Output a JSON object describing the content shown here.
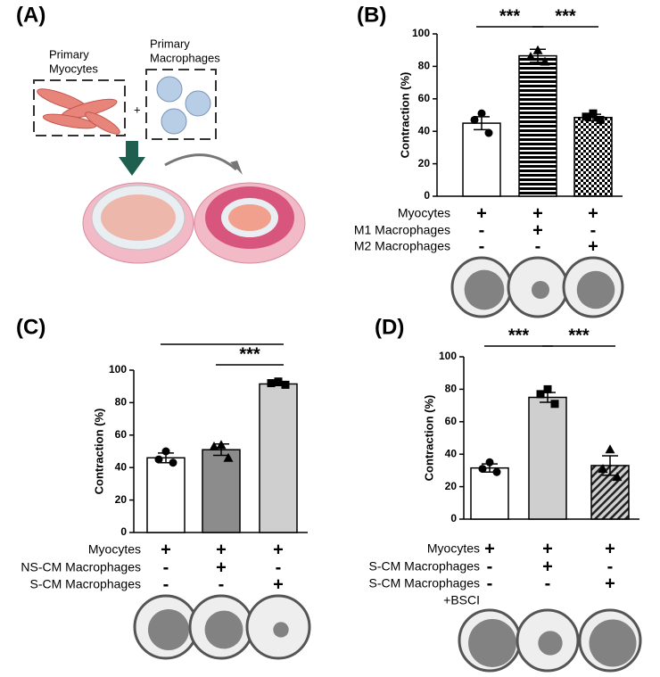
{
  "diagram": {
    "panel": "(A)",
    "myocytes": [
      "Primary",
      "Myocytes"
    ],
    "macrophages": [
      "Primary",
      "Macrophages"
    ],
    "plus": "+"
  },
  "chart_data": [
    {
      "type": "bar",
      "panel": "(B)",
      "ylabel": "Contraction (%)",
      "ylim": [
        0,
        100
      ],
      "yticks": [
        0,
        20,
        40,
        60,
        80,
        100
      ],
      "values": [
        45,
        86.5,
        48.5
      ],
      "errors": [
        4,
        4,
        2
      ],
      "points": [
        [
          51,
          47,
          39
        ],
        [
          90,
          86,
          83
        ],
        [
          51,
          49,
          47
        ]
      ],
      "markers": [
        "circle",
        "triangle",
        "square"
      ],
      "bar_fills": [
        "#ffffff",
        "horizontal-stripes",
        "checkerboard"
      ],
      "annotations": [
        {
          "text": "***",
          "between": [
            0,
            1
          ]
        },
        {
          "text": "***",
          "between": [
            1,
            2
          ]
        }
      ],
      "conditions": [
        {
          "label": [
            "Myocytes"
          ],
          "signs": [
            "+",
            "+",
            "+"
          ]
        },
        {
          "label": [
            "M1 Macrophages"
          ],
          "signs": [
            "-",
            "+",
            "-"
          ]
        },
        {
          "label": [
            "M2 Macrophages"
          ],
          "signs": [
            "-",
            "-",
            "+"
          ]
        }
      ]
    },
    {
      "type": "bar",
      "panel": "(C)",
      "ylabel": "Contraction (%)",
      "ylim": [
        0,
        100
      ],
      "yticks": [
        0,
        20,
        40,
        60,
        80,
        100
      ],
      "values": [
        46,
        51,
        91.5
      ],
      "errors": [
        3,
        3.5,
        1
      ],
      "points": [
        [
          50,
          45,
          43
        ],
        [
          54,
          53,
          46
        ],
        [
          93,
          92,
          91
        ]
      ],
      "markers": [
        "circle",
        "triangle",
        "square"
      ],
      "bar_fills": [
        "#ffffff",
        "#8c8c8c",
        "#cfcfcf"
      ],
      "annotations": [
        {
          "between": [
            0,
            2
          ]
        },
        {
          "text": "***",
          "between": [
            1,
            2
          ]
        }
      ],
      "conditions": [
        {
          "label": [
            "Myocytes"
          ],
          "signs": [
            "+",
            "+",
            "+"
          ]
        },
        {
          "label": [
            "NS-CM Macrophages"
          ],
          "signs": [
            "-",
            "+",
            "-"
          ]
        },
        {
          "label": [
            "S-CM Macrophages"
          ],
          "signs": [
            "-",
            "-",
            "+"
          ]
        }
      ]
    },
    {
      "type": "bar",
      "panel": "(D)",
      "ylabel": "Contraction (%)",
      "ylim": [
        0,
        100
      ],
      "yticks": [
        0,
        20,
        40,
        60,
        80,
        100
      ],
      "values": [
        31.5,
        75,
        33
      ],
      "errors": [
        2.5,
        3,
        6
      ],
      "points": [
        [
          35,
          31,
          29
        ],
        [
          80,
          77,
          71
        ],
        [
          43,
          31,
          26
        ]
      ],
      "markers": [
        "circle",
        "square",
        "triangle"
      ],
      "bar_fills": [
        "#ffffff",
        "#cfcfcf",
        "diagonal-hatch"
      ],
      "annotations": [
        {
          "text": "***",
          "between": [
            0,
            1
          ]
        },
        {
          "text": "***",
          "between": [
            1,
            2
          ]
        }
      ],
      "conditions": [
        {
          "label": [
            "Myocytes"
          ],
          "signs": [
            "+",
            "+",
            "+"
          ]
        },
        {
          "label": [
            "S-CM Macrophages"
          ],
          "signs": [
            "-",
            "+",
            "-"
          ]
        },
        {
          "label": [
            "S-CM Macrophages",
            "+BSCI"
          ],
          "signs": [
            "-",
            "-",
            "+"
          ]
        }
      ]
    }
  ]
}
